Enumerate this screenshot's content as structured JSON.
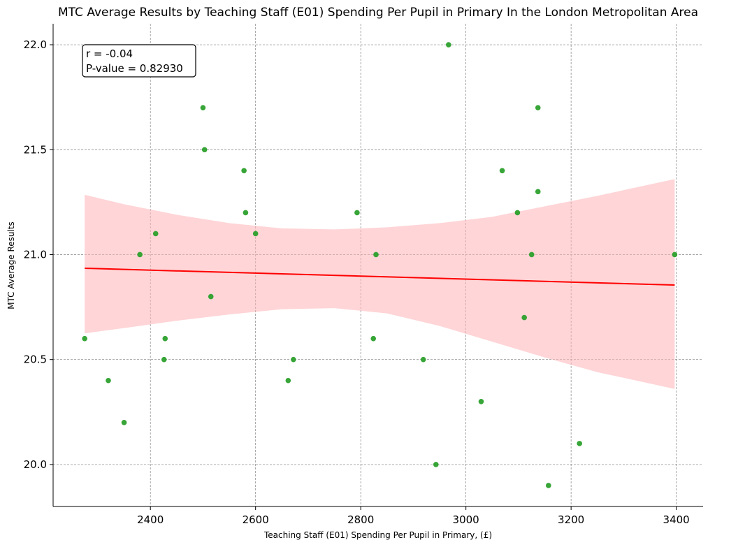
{
  "chart_data": {
    "type": "scatter",
    "title": "MTC Average Results by Teaching Staff (E01) Spending Per Pupil in Primary In the London Metropolitan Area",
    "xlabel": "Teaching Staff (E01) Spending Per Pupil in Primary, (£)",
    "ylabel": "MTC Average Results",
    "xlim": [
      2215,
      3451
    ],
    "ylim": [
      19.8,
      22.1
    ],
    "x_ticks": [
      2400,
      2600,
      2800,
      3000,
      3200,
      3400
    ],
    "y_ticks": [
      20.0,
      20.5,
      21.0,
      21.5,
      22.0
    ],
    "grid": true,
    "annotation": {
      "r_text": "r = -0.04",
      "p_text": "P-value = 0.82930"
    },
    "colors": {
      "points": "#2ca02c",
      "regression_line": "#ff0000",
      "confidence_band": "#ffb3b6",
      "grid": "#808080"
    },
    "regression": {
      "x": [
        2275,
        3397
      ],
      "y": [
        20.935,
        20.855
      ]
    },
    "confidence_band": {
      "x": [
        2275,
        2350,
        2450,
        2550,
        2650,
        2750,
        2850,
        2950,
        3050,
        3150,
        3250,
        3397
      ],
      "upper": [
        21.285,
        21.24,
        21.19,
        21.15,
        21.125,
        21.12,
        21.13,
        21.15,
        21.18,
        21.23,
        21.28,
        21.36
      ],
      "lower": [
        20.625,
        20.65,
        20.685,
        20.715,
        20.74,
        20.745,
        20.72,
        20.66,
        20.585,
        20.51,
        20.44,
        20.36
      ]
    },
    "points": [
      {
        "x": 2275,
        "y": 20.6
      },
      {
        "x": 2320,
        "y": 20.4
      },
      {
        "x": 2350,
        "y": 20.2
      },
      {
        "x": 2380,
        "y": 21.0
      },
      {
        "x": 2410,
        "y": 21.1
      },
      {
        "x": 2426,
        "y": 20.5
      },
      {
        "x": 2428,
        "y": 20.6
      },
      {
        "x": 2500,
        "y": 21.7
      },
      {
        "x": 2503,
        "y": 21.5
      },
      {
        "x": 2515,
        "y": 20.8
      },
      {
        "x": 2578,
        "y": 21.4
      },
      {
        "x": 2581,
        "y": 21.2
      },
      {
        "x": 2600,
        "y": 21.1
      },
      {
        "x": 2662,
        "y": 20.4
      },
      {
        "x": 2672,
        "y": 20.5
      },
      {
        "x": 2793,
        "y": 21.2
      },
      {
        "x": 2824,
        "y": 20.6
      },
      {
        "x": 2829,
        "y": 21.0
      },
      {
        "x": 2919,
        "y": 20.5
      },
      {
        "x": 2943,
        "y": 20.0
      },
      {
        "x": 2967,
        "y": 22.0
      },
      {
        "x": 3029,
        "y": 20.3
      },
      {
        "x": 3069,
        "y": 21.4
      },
      {
        "x": 3098,
        "y": 21.2
      },
      {
        "x": 3111,
        "y": 20.7
      },
      {
        "x": 3125,
        "y": 21.0
      },
      {
        "x": 3137,
        "y": 21.3
      },
      {
        "x": 3137,
        "y": 21.7
      },
      {
        "x": 3157,
        "y": 19.9
      },
      {
        "x": 3216,
        "y": 20.1
      },
      {
        "x": 3397,
        "y": 21.0
      }
    ]
  }
}
